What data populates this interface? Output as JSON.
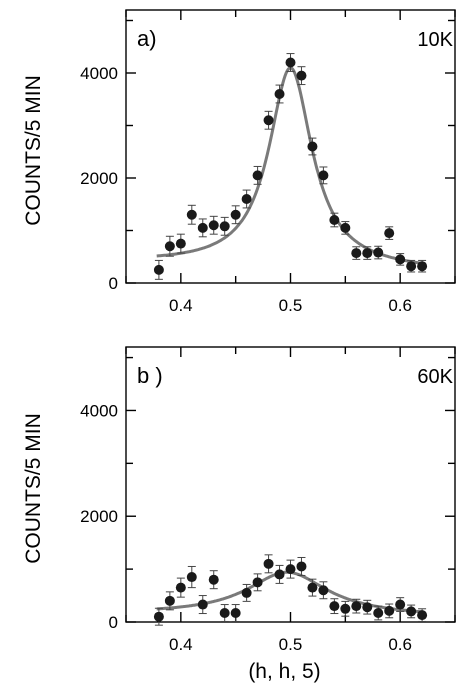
{
  "chart_data": [
    {
      "type": "scatter",
      "panel_label": "a)",
      "temperature": "10K",
      "ylabel": "COUNTS/5 MIN",
      "xlabel": "",
      "xlim": [
        0.35,
        0.65
      ],
      "ylim": [
        0,
        5200
      ],
      "x_ticks": [
        0.4,
        0.5,
        0.6
      ],
      "y_ticks": [
        0,
        2000,
        4000
      ],
      "fit_curve": true,
      "x": [
        0.38,
        0.39,
        0.4,
        0.41,
        0.42,
        0.43,
        0.44,
        0.45,
        0.46,
        0.47,
        0.48,
        0.49,
        0.5,
        0.51,
        0.52,
        0.53,
        0.54,
        0.55,
        0.56,
        0.57,
        0.58,
        0.59,
        0.6,
        0.61,
        0.62
      ],
      "y": [
        250,
        700,
        750,
        1300,
        1050,
        1100,
        1080,
        1300,
        1600,
        2050,
        3100,
        3600,
        4200,
        3950,
        2600,
        2050,
        1200,
        1050,
        570,
        570,
        580,
        950,
        450,
        320,
        320
      ],
      "yerr": [
        180,
        190,
        180,
        180,
        170,
        170,
        170,
        170,
        170,
        170,
        170,
        170,
        170,
        170,
        160,
        160,
        130,
        120,
        120,
        120,
        120,
        120,
        110,
        110,
        110
      ]
    },
    {
      "type": "scatter",
      "panel_label": "b )",
      "temperature": "60K",
      "ylabel": "COUNTS/5 MIN",
      "xlabel": "(h,  h,  5)",
      "xlim": [
        0.35,
        0.65
      ],
      "ylim": [
        0,
        5200
      ],
      "x_ticks": [
        0.4,
        0.5,
        0.6
      ],
      "y_ticks": [
        0,
        2000,
        4000
      ],
      "fit_curve": true,
      "x": [
        0.38,
        0.39,
        0.4,
        0.41,
        0.42,
        0.43,
        0.44,
        0.45,
        0.46,
        0.47,
        0.48,
        0.49,
        0.5,
        0.51,
        0.52,
        0.53,
        0.54,
        0.55,
        0.56,
        0.57,
        0.58,
        0.59,
        0.6,
        0.61,
        0.62
      ],
      "y": [
        100,
        400,
        650,
        850,
        330,
        800,
        170,
        170,
        550,
        750,
        1100,
        900,
        1000,
        1050,
        650,
        600,
        300,
        250,
        300,
        280,
        170,
        210,
        330,
        200,
        130
      ],
      "yerr": [
        160,
        170,
        180,
        200,
        170,
        170,
        160,
        160,
        160,
        160,
        170,
        170,
        170,
        170,
        160,
        160,
        140,
        140,
        130,
        130,
        130,
        130,
        130,
        120,
        120
      ]
    }
  ]
}
